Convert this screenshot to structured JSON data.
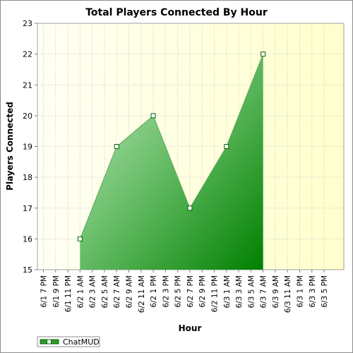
{
  "chart_data": {
    "type": "area",
    "title": "Total Players Connected By Hour",
    "xlabel": "Hour",
    "ylabel": "Players Connected",
    "ylim": [
      15,
      23
    ],
    "y_ticks": [
      15,
      16,
      17,
      18,
      19,
      20,
      21,
      22,
      23
    ],
    "categories": [
      "6/1 7 PM",
      "6/1 9 PM",
      "6/1 11 PM",
      "6/2 1 AM",
      "6/2 3 AM",
      "6/2 5 AM",
      "6/2 7 AM",
      "6/2 9 AM",
      "6/2 11 AM",
      "6/2 1 PM",
      "6/2 3 PM",
      "6/2 5 PM",
      "6/2 7 PM",
      "6/2 9 PM",
      "6/2 11 PM",
      "6/3 1 AM",
      "6/3 3 AM",
      "6/3 5 AM",
      "6/3 7 AM",
      "6/3 9 AM",
      "6/3 11 AM",
      "6/3 1 PM",
      "6/3 3 PM",
      "6/3 5 PM"
    ],
    "series": [
      {
        "name": "ChatMUD",
        "points": [
          {
            "x": "6/2 1 AM",
            "y": 16
          },
          {
            "x": "6/2 7 AM",
            "y": 19
          },
          {
            "x": "6/2 1 PM",
            "y": 20
          },
          {
            "x": "6/2 7 PM",
            "y": 17
          },
          {
            "x": "6/3 1 AM",
            "y": 19
          },
          {
            "x": "6/3 7 AM",
            "y": 22
          }
        ]
      }
    ],
    "grid": true,
    "legend": "bottom-left",
    "colors": {
      "plot_bg_top": "#fffff0",
      "plot_bg_right": "#ffffcc",
      "area_light": "#b3dcb3",
      "area_dark": "#008000",
      "line": "#006400",
      "grid": "#c8c8c8"
    }
  }
}
